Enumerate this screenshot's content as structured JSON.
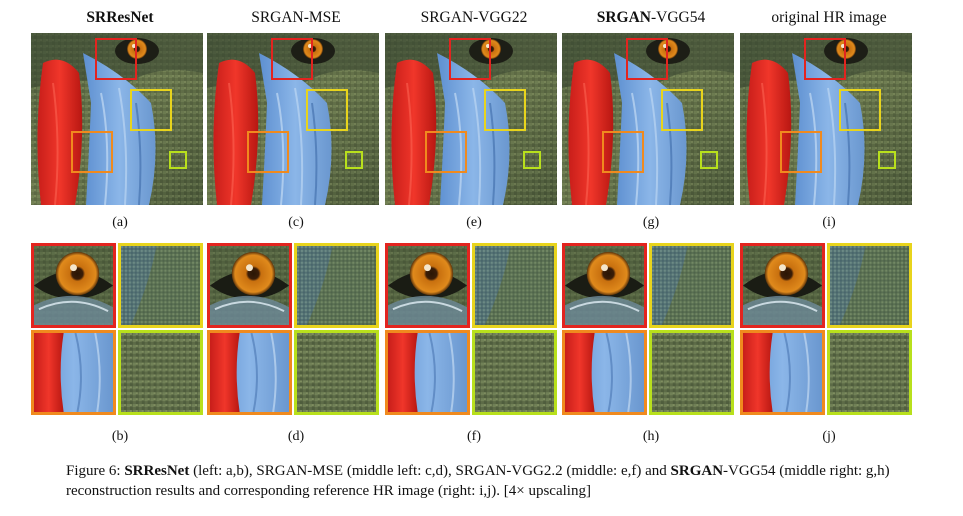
{
  "columns": [
    {
      "title_bold": "SRResNet",
      "title_rest": "",
      "top_label": "(a)",
      "bottom_label": "(b)"
    },
    {
      "title_bold": "",
      "title_rest": "SRGAN-MSE",
      "top_label": "(c)",
      "bottom_label": "(d)"
    },
    {
      "title_bold": "",
      "title_rest": "SRGAN-VGG22",
      "top_label": "(e)",
      "bottom_label": "(f)"
    },
    {
      "title_bold": "SRGAN",
      "title_rest": "-VGG54",
      "top_label": "(g)",
      "bottom_label": "(h)"
    },
    {
      "title_bold": "",
      "title_rest": "original HR image",
      "top_label": "(i)",
      "bottom_label": "(j)"
    }
  ],
  "caption": {
    "prefix": "Figure 6: ",
    "part1_bold": "SRResNet",
    "part2": " (left: a,b), SRGAN-MSE (middle left: c,d), SRGAN-VGG2.2 (middle: e,f) and ",
    "part3_bold": "SRGAN",
    "part4": "-VGG54 (middle right: g,h) reconstruction results and corresponding reference HR image (right: i,j). [4× upscaling]"
  },
  "colors": {
    "eye_box": "#e3241f",
    "fur_box": "#e8d41c",
    "nose_box": "#f08a1e",
    "texture_box": "#b8e01c"
  }
}
